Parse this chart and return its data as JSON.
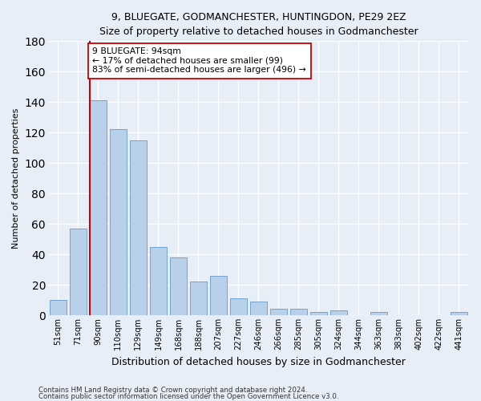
{
  "title1": "9, BLUEGATE, GODMANCHESTER, HUNTINGDON, PE29 2EZ",
  "title2": "Size of property relative to detached houses in Godmanchester",
  "xlabel": "Distribution of detached houses by size in Godmanchester",
  "ylabel": "Number of detached properties",
  "bar_labels": [
    "51sqm",
    "71sqm",
    "90sqm",
    "110sqm",
    "129sqm",
    "149sqm",
    "168sqm",
    "188sqm",
    "207sqm",
    "227sqm",
    "246sqm",
    "266sqm",
    "285sqm",
    "305sqm",
    "324sqm",
    "344sqm",
    "363sqm",
    "383sqm",
    "402sqm",
    "422sqm",
    "441sqm"
  ],
  "bar_values": [
    10,
    57,
    141,
    122,
    115,
    45,
    38,
    22,
    26,
    11,
    9,
    4,
    4,
    2,
    3,
    0,
    2,
    0,
    0,
    0,
    2
  ],
  "bar_color": "#b8d0ea",
  "bar_edge_color": "#6699cc",
  "vline_color": "#cc0000",
  "annotation_line1": "9 BLUEGATE: 94sqm",
  "annotation_line2": "← 17% of detached houses are smaller (99)",
  "annotation_line3": "83% of semi-detached houses are larger (496) →",
  "annotation_box_color": "#ffffff",
  "annotation_box_edge": "#cc0000",
  "ylim": [
    0,
    180
  ],
  "yticks": [
    0,
    20,
    40,
    60,
    80,
    100,
    120,
    140,
    160,
    180
  ],
  "footer1": "Contains HM Land Registry data © Crown copyright and database right 2024.",
  "footer2": "Contains public sector information licensed under the Open Government Licence v3.0.",
  "bg_color": "#e8eef8",
  "grid_color": "#ffffff",
  "title_fontsize": 9,
  "ylabel_fontsize": 8,
  "xlabel_fontsize": 9
}
